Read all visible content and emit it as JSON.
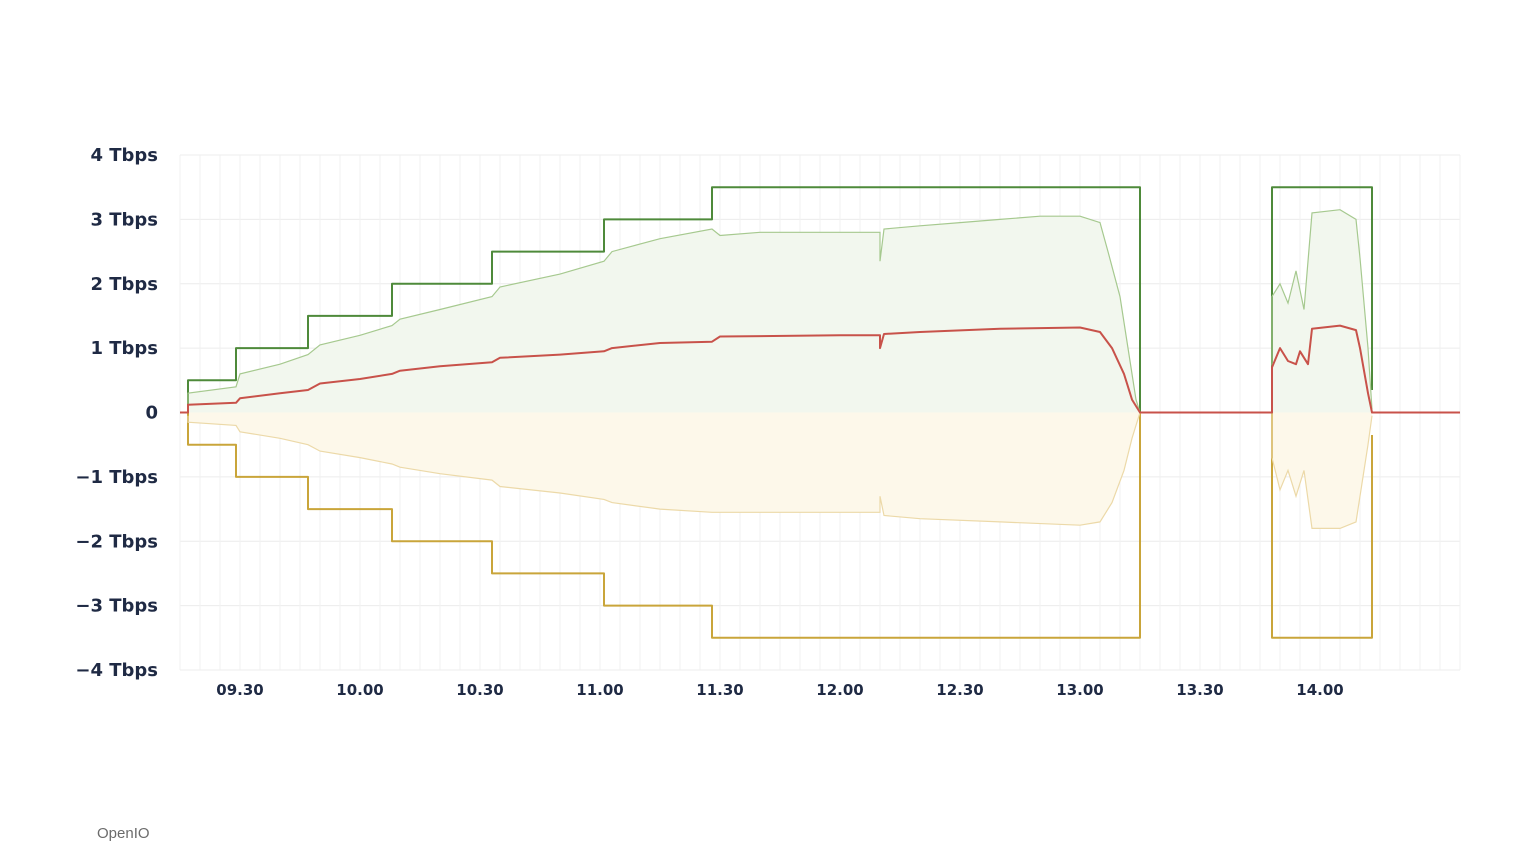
{
  "watermark": "OpenIO",
  "chart_data": {
    "type": "area",
    "title": "",
    "xlabel": "",
    "ylabel": "",
    "ylim": [
      -4,
      4
    ],
    "xlim": [
      "09:15",
      "14:35"
    ],
    "grid": true,
    "y_unit": "Tbps",
    "y_ticks": [
      {
        "value": 4,
        "label": "4 Tbps"
      },
      {
        "value": 3,
        "label": "3 Tbps"
      },
      {
        "value": 2,
        "label": "2 Tbps"
      },
      {
        "value": 1,
        "label": "1 Tbps"
      },
      {
        "value": 0,
        "label": "0"
      },
      {
        "value": -1,
        "label": "−1 Tbps"
      },
      {
        "value": -2,
        "label": "−2 Tbps"
      },
      {
        "value": -3,
        "label": "−3 Tbps"
      },
      {
        "value": -4,
        "label": "−4 Tbps"
      }
    ],
    "x_ticks": [
      {
        "value": "09:30",
        "label": "09.30"
      },
      {
        "value": "10:00",
        "label": "10.00"
      },
      {
        "value": "10:30",
        "label": "10.30"
      },
      {
        "value": "11:00",
        "label": "11.00"
      },
      {
        "value": "11:30",
        "label": "11.30"
      },
      {
        "value": "12:00",
        "label": "12.00"
      },
      {
        "value": "12:30",
        "label": "12.30"
      },
      {
        "value": "13:00",
        "label": "13.00"
      },
      {
        "value": "13:30",
        "label": "13.30"
      },
      {
        "value": "14:00",
        "label": "14.00"
      }
    ],
    "series": [
      {
        "color": "#4e8a3a",
        "style": "step",
        "points": [
          [
            "09:17",
            0
          ],
          [
            "09:17",
            0.5
          ],
          [
            "09:29",
            0.5
          ],
          [
            "09:29",
            1.0
          ],
          [
            "09:47",
            1.0
          ],
          [
            "09:47",
            1.5
          ],
          [
            "10:08",
            1.5
          ],
          [
            "10:08",
            2.0
          ],
          [
            "10:33",
            2.0
          ],
          [
            "10:33",
            2.5
          ],
          [
            "11:01",
            2.5
          ],
          [
            "11:01",
            3.0
          ],
          [
            "11:28",
            3.0
          ],
          [
            "11:28",
            3.5
          ],
          [
            "13:15",
            3.5
          ],
          [
            "13:15",
            0
          ],
          [
            "13:48",
            0
          ],
          [
            "13:48",
            3.5
          ],
          [
            "14:13",
            3.5
          ],
          [
            "14:13",
            0.35
          ]
        ]
      },
      {
        "color": "#c9a53a",
        "style": "step",
        "points": [
          [
            "09:17",
            0
          ],
          [
            "09:17",
            -0.5
          ],
          [
            "09:29",
            -0.5
          ],
          [
            "09:29",
            -1.0
          ],
          [
            "09:47",
            -1.0
          ],
          [
            "09:47",
            -1.5
          ],
          [
            "10:08",
            -1.5
          ],
          [
            "10:08",
            -2.0
          ],
          [
            "10:33",
            -2.0
          ],
          [
            "10:33",
            -2.5
          ],
          [
            "11:01",
            -2.5
          ],
          [
            "11:01",
            -3.0
          ],
          [
            "11:28",
            -3.0
          ],
          [
            "11:28",
            -3.5
          ],
          [
            "13:15",
            -3.5
          ],
          [
            "13:15",
            0
          ],
          [
            "13:48",
            0
          ],
          [
            "13:48",
            -3.5
          ],
          [
            "14:13",
            -3.5
          ],
          [
            "14:13",
            -0.35
          ]
        ]
      },
      {
        "color": "#a6c98f",
        "fill": "#f2f7ee",
        "style": "area",
        "points": [
          [
            "09:17",
            0.05
          ],
          [
            "09:17",
            0.3
          ],
          [
            "09:29",
            0.4
          ],
          [
            "09:30",
            0.6
          ],
          [
            "09:40",
            0.75
          ],
          [
            "09:47",
            0.9
          ],
          [
            "09:50",
            1.05
          ],
          [
            "10:00",
            1.2
          ],
          [
            "10:08",
            1.35
          ],
          [
            "10:10",
            1.45
          ],
          [
            "10:20",
            1.6
          ],
          [
            "10:33",
            1.8
          ],
          [
            "10:35",
            1.95
          ],
          [
            "10:50",
            2.15
          ],
          [
            "11:01",
            2.35
          ],
          [
            "11:03",
            2.5
          ],
          [
            "11:15",
            2.7
          ],
          [
            "11:28",
            2.85
          ],
          [
            "11:30",
            2.75
          ],
          [
            "11:40",
            2.8
          ],
          [
            "12:00",
            2.8
          ],
          [
            "12:10",
            2.8
          ],
          [
            "12:10",
            2.35
          ],
          [
            "12:11",
            2.85
          ],
          [
            "12:20",
            2.9
          ],
          [
            "12:30",
            2.95
          ],
          [
            "12:40",
            3.0
          ],
          [
            "12:50",
            3.05
          ],
          [
            "13:00",
            3.05
          ],
          [
            "13:05",
            2.95
          ],
          [
            "13:07",
            2.5
          ],
          [
            "13:10",
            1.8
          ],
          [
            "13:12",
            1.0
          ],
          [
            "13:14",
            0.2
          ],
          [
            "13:15",
            0
          ],
          [
            "13:48",
            0
          ],
          [
            "13:48",
            1.8
          ],
          [
            "13:50",
            2.0
          ],
          [
            "13:52",
            1.7
          ],
          [
            "13:54",
            2.2
          ],
          [
            "13:56",
            1.6
          ],
          [
            "13:58",
            3.1
          ],
          [
            "14:05",
            3.15
          ],
          [
            "14:09",
            3.0
          ],
          [
            "14:10",
            2.4
          ],
          [
            "14:12",
            1.0
          ],
          [
            "14:13",
            0.05
          ]
        ]
      },
      {
        "color": "#ecd9a8",
        "fill": "#fdf8ea",
        "style": "area",
        "points": [
          [
            "09:17",
            -0.05
          ],
          [
            "09:17",
            -0.15
          ],
          [
            "09:29",
            -0.2
          ],
          [
            "09:30",
            -0.3
          ],
          [
            "09:40",
            -0.4
          ],
          [
            "09:47",
            -0.5
          ],
          [
            "09:50",
            -0.6
          ],
          [
            "10:00",
            -0.7
          ],
          [
            "10:08",
            -0.8
          ],
          [
            "10:10",
            -0.85
          ],
          [
            "10:20",
            -0.95
          ],
          [
            "10:33",
            -1.05
          ],
          [
            "10:35",
            -1.15
          ],
          [
            "10:50",
            -1.25
          ],
          [
            "11:01",
            -1.35
          ],
          [
            "11:03",
            -1.4
          ],
          [
            "11:15",
            -1.5
          ],
          [
            "11:28",
            -1.55
          ],
          [
            "11:40",
            -1.55
          ],
          [
            "12:00",
            -1.55
          ],
          [
            "12:10",
            -1.55
          ],
          [
            "12:10",
            -1.3
          ],
          [
            "12:11",
            -1.6
          ],
          [
            "12:20",
            -1.65
          ],
          [
            "12:40",
            -1.7
          ],
          [
            "13:00",
            -1.75
          ],
          [
            "13:05",
            -1.7
          ],
          [
            "13:08",
            -1.4
          ],
          [
            "13:11",
            -0.9
          ],
          [
            "13:13",
            -0.4
          ],
          [
            "13:15",
            0
          ],
          [
            "13:48",
            0
          ],
          [
            "13:48",
            -0.7
          ],
          [
            "13:50",
            -1.2
          ],
          [
            "13:52",
            -0.9
          ],
          [
            "13:54",
            -1.3
          ],
          [
            "13:56",
            -0.9
          ],
          [
            "13:58",
            -1.8
          ],
          [
            "14:05",
            -1.8
          ],
          [
            "14:09",
            -1.7
          ],
          [
            "14:10",
            -1.3
          ],
          [
            "14:12",
            -0.5
          ],
          [
            "14:13",
            -0.05
          ]
        ]
      },
      {
        "color": "#c8524a",
        "style": "line",
        "points": [
          [
            "09:15",
            0
          ],
          [
            "09:17",
            0
          ],
          [
            "09:17",
            0.12
          ],
          [
            "09:29",
            0.15
          ],
          [
            "09:30",
            0.22
          ],
          [
            "09:40",
            0.3
          ],
          [
            "09:47",
            0.35
          ],
          [
            "09:50",
            0.45
          ],
          [
            "10:00",
            0.52
          ],
          [
            "10:08",
            0.6
          ],
          [
            "10:10",
            0.65
          ],
          [
            "10:20",
            0.72
          ],
          [
            "10:33",
            0.78
          ],
          [
            "10:35",
            0.85
          ],
          [
            "10:50",
            0.9
          ],
          [
            "11:01",
            0.95
          ],
          [
            "11:03",
            1.0
          ],
          [
            "11:15",
            1.08
          ],
          [
            "11:28",
            1.1
          ],
          [
            "11:30",
            1.18
          ],
          [
            "12:00",
            1.2
          ],
          [
            "12:10",
            1.2
          ],
          [
            "12:10",
            1.0
          ],
          [
            "12:11",
            1.22
          ],
          [
            "12:20",
            1.25
          ],
          [
            "12:40",
            1.3
          ],
          [
            "13:00",
            1.32
          ],
          [
            "13:05",
            1.25
          ],
          [
            "13:08",
            1.0
          ],
          [
            "13:11",
            0.6
          ],
          [
            "13:13",
            0.2
          ],
          [
            "13:15",
            0
          ],
          [
            "13:48",
            0
          ],
          [
            "13:48",
            0.7
          ],
          [
            "13:50",
            1.0
          ],
          [
            "13:52",
            0.8
          ],
          [
            "13:54",
            0.75
          ],
          [
            "13:55",
            0.95
          ],
          [
            "13:57",
            0.75
          ],
          [
            "13:58",
            1.3
          ],
          [
            "14:05",
            1.35
          ],
          [
            "14:09",
            1.28
          ],
          [
            "14:10",
            1.0
          ],
          [
            "14:12",
            0.3
          ],
          [
            "14:13",
            0
          ],
          [
            "14:35",
            0
          ]
        ]
      }
    ]
  }
}
